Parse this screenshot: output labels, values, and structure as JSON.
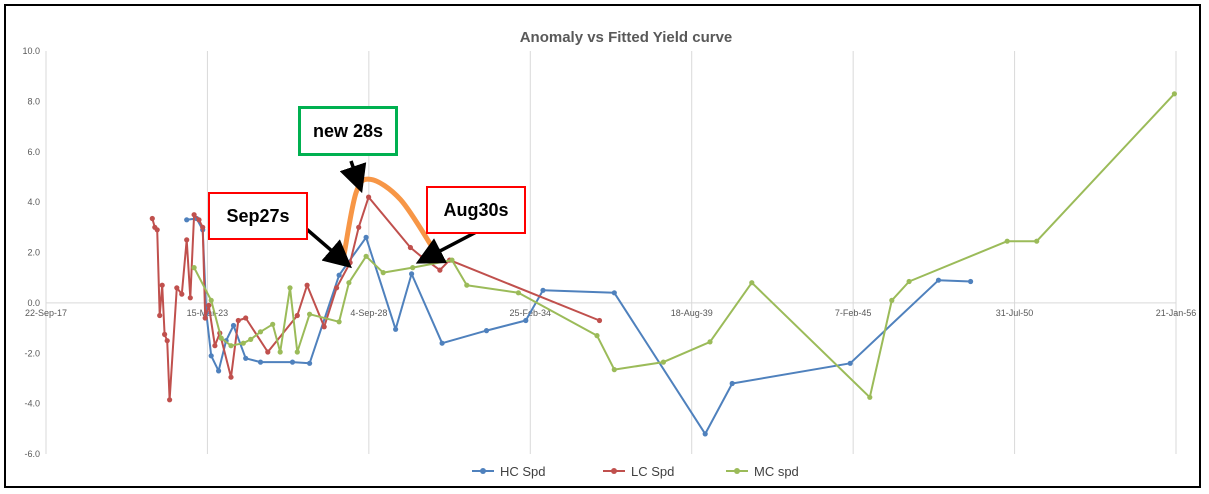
{
  "chart_data": {
    "type": "line",
    "title": "Anomaly vs Fitted Yield curve",
    "xlabel": "",
    "ylabel": "",
    "x_axis": {
      "type": "date",
      "tick_labels": [
        "22-Sep-17",
        "15-Mar-23",
        "4-Sep-28",
        "25-Feb-34",
        "18-Aug-39",
        "7-Feb-45",
        "31-Jul-50",
        "21-Jan-56"
      ],
      "tick_values": [
        "2017-09-22",
        "2023-03-15",
        "2028-09-04",
        "2034-02-25",
        "2039-08-18",
        "2045-02-07",
        "2050-07-31",
        "2056-01-21"
      ],
      "range": [
        "2017-09-22",
        "2056-01-21"
      ]
    },
    "y_axis": {
      "ylim": [
        -6.0,
        10.0
      ],
      "tick_labels": [
        "10.0",
        "8.0",
        "6.0",
        "4.0",
        "2.0",
        "0.0",
        "-2.0",
        "-4.0",
        "-6.0"
      ]
    },
    "grid": "vertical",
    "legend": "bottom-center",
    "series": [
      {
        "name": "HC Spd",
        "color": "#4f81bd",
        "points": [
          [
            "2022-07-01",
            3.3
          ],
          [
            "2022-11-01",
            3.35
          ],
          [
            "2023-01-15",
            2.9
          ],
          [
            "2023-03-01",
            -0.4
          ],
          [
            "2023-05-01",
            -2.1
          ],
          [
            "2023-08-01",
            -2.7
          ],
          [
            "2023-11-01",
            -1.5
          ],
          [
            "2024-02-01",
            -0.9
          ],
          [
            "2024-07-01",
            -2.2
          ],
          [
            "2025-01-01",
            -2.35
          ],
          [
            "2026-02-01",
            -2.35
          ],
          [
            "2026-09-01",
            -2.4
          ],
          [
            "2027-09-01",
            1.1
          ],
          [
            "2028-08-01",
            2.6
          ],
          [
            "2029-08-01",
            -1.05
          ],
          [
            "2030-02-15",
            1.15
          ],
          [
            "2031-03-01",
            -1.6
          ],
          [
            "2032-09-01",
            -1.1
          ],
          [
            "2034-01-01",
            -0.7
          ],
          [
            "2034-08-01",
            0.5
          ],
          [
            "2037-01-01",
            0.4
          ],
          [
            "2040-02-01",
            -5.2
          ],
          [
            "2041-01-01",
            -3.2
          ],
          [
            "2045-01-01",
            -2.4
          ],
          [
            "2048-01-01",
            0.9
          ],
          [
            "2049-02-01",
            0.85
          ]
        ]
      },
      {
        "name": "LC Spd",
        "color": "#c0504d",
        "points": [
          [
            "2021-05-01",
            3.35
          ],
          [
            "2021-06-01",
            3.0
          ],
          [
            "2021-07-01",
            2.9
          ],
          [
            "2021-08-01",
            -0.5
          ],
          [
            "2021-09-01",
            0.7
          ],
          [
            "2021-10-01",
            -1.25
          ],
          [
            "2021-11-01",
            -1.5
          ],
          [
            "2021-12-01",
            -3.85
          ],
          [
            "2022-03-01",
            0.6
          ],
          [
            "2022-05-01",
            0.35
          ],
          [
            "2022-07-01",
            2.5
          ],
          [
            "2022-08-15",
            0.2
          ],
          [
            "2022-10-01",
            3.5
          ],
          [
            "2022-12-01",
            3.3
          ],
          [
            "2023-01-15",
            3.0
          ],
          [
            "2023-02-15",
            -0.6
          ],
          [
            "2023-04-01",
            -0.1
          ],
          [
            "2023-06-15",
            -1.7
          ],
          [
            "2023-08-15",
            -1.2
          ],
          [
            "2024-01-01",
            -2.95
          ],
          [
            "2024-04-01",
            -0.7
          ],
          [
            "2024-07-01",
            -0.6
          ],
          [
            "2025-04-01",
            -1.95
          ],
          [
            "2026-04-01",
            -0.5
          ],
          [
            "2026-08-01",
            0.7
          ],
          [
            "2027-03-01",
            -0.95
          ],
          [
            "2027-08-01",
            0.6
          ],
          [
            "2028-01-15",
            1.6
          ],
          [
            "2028-05-01",
            3.0
          ],
          [
            "2028-09-01",
            4.2
          ],
          [
            "2030-02-01",
            2.2
          ],
          [
            "2030-07-01",
            1.8
          ],
          [
            "2031-02-01",
            1.3
          ],
          [
            "2031-06-01",
            1.7
          ],
          [
            "2036-07-01",
            -0.7
          ]
        ]
      },
      {
        "name": "MC spd",
        "color": "#9bbb59",
        "points": [
          [
            "2022-10-01",
            1.4
          ],
          [
            "2023-05-01",
            0.1
          ],
          [
            "2023-09-01",
            -1.4
          ],
          [
            "2024-01-01",
            -1.7
          ],
          [
            "2024-06-01",
            -1.6
          ],
          [
            "2024-09-01",
            -1.45
          ],
          [
            "2025-01-01",
            -1.15
          ],
          [
            "2025-06-01",
            -0.85
          ],
          [
            "2025-09-01",
            -1.95
          ],
          [
            "2026-01-01",
            0.6
          ],
          [
            "2026-04-01",
            -1.95
          ],
          [
            "2026-09-01",
            -0.45
          ],
          [
            "2027-09-01",
            -0.75
          ],
          [
            "2028-01-01",
            0.8
          ],
          [
            "2028-08-01",
            1.85
          ],
          [
            "2029-03-01",
            1.2
          ],
          [
            "2030-03-01",
            1.4
          ],
          [
            "2031-07-01",
            1.7
          ],
          [
            "2032-01-01",
            0.7
          ],
          [
            "2033-10-01",
            0.4
          ],
          [
            "2036-06-01",
            -1.3
          ],
          [
            "2037-01-01",
            -2.65
          ],
          [
            "2038-09-01",
            -2.35
          ],
          [
            "2040-04-01",
            -1.55
          ],
          [
            "2041-09-01",
            0.8
          ],
          [
            "2045-09-01",
            -3.75
          ],
          [
            "2046-06-01",
            0.1
          ],
          [
            "2047-01-01",
            0.85
          ],
          [
            "2050-05-01",
            2.45
          ],
          [
            "2051-05-01",
            2.45
          ],
          [
            "2056-01-01",
            8.3
          ]
        ]
      }
    ],
    "annotations": [
      {
        "text": "new 28s",
        "border_color": "#00b050",
        "arrow_to": [
          "2028-05-01",
          4.75
        ]
      },
      {
        "text": "Sep27s",
        "border_color": "#ff0000",
        "arrow_to": [
          "2027-11-01",
          1.65
        ]
      },
      {
        "text": "Aug30s",
        "border_color": "#ff0000",
        "arrow_to": [
          "2030-08-01",
          1.75
        ]
      }
    ],
    "highlight_curve": {
      "color": "#f79646",
      "points": [
        [
          "2027-11-01",
          1.9
        ],
        [
          "2028-04-01",
          4.4
        ],
        [
          "2028-10-01",
          4.9
        ],
        [
          "2029-10-01",
          4.1
        ],
        [
          "2030-11-01",
          2.2
        ]
      ]
    }
  }
}
